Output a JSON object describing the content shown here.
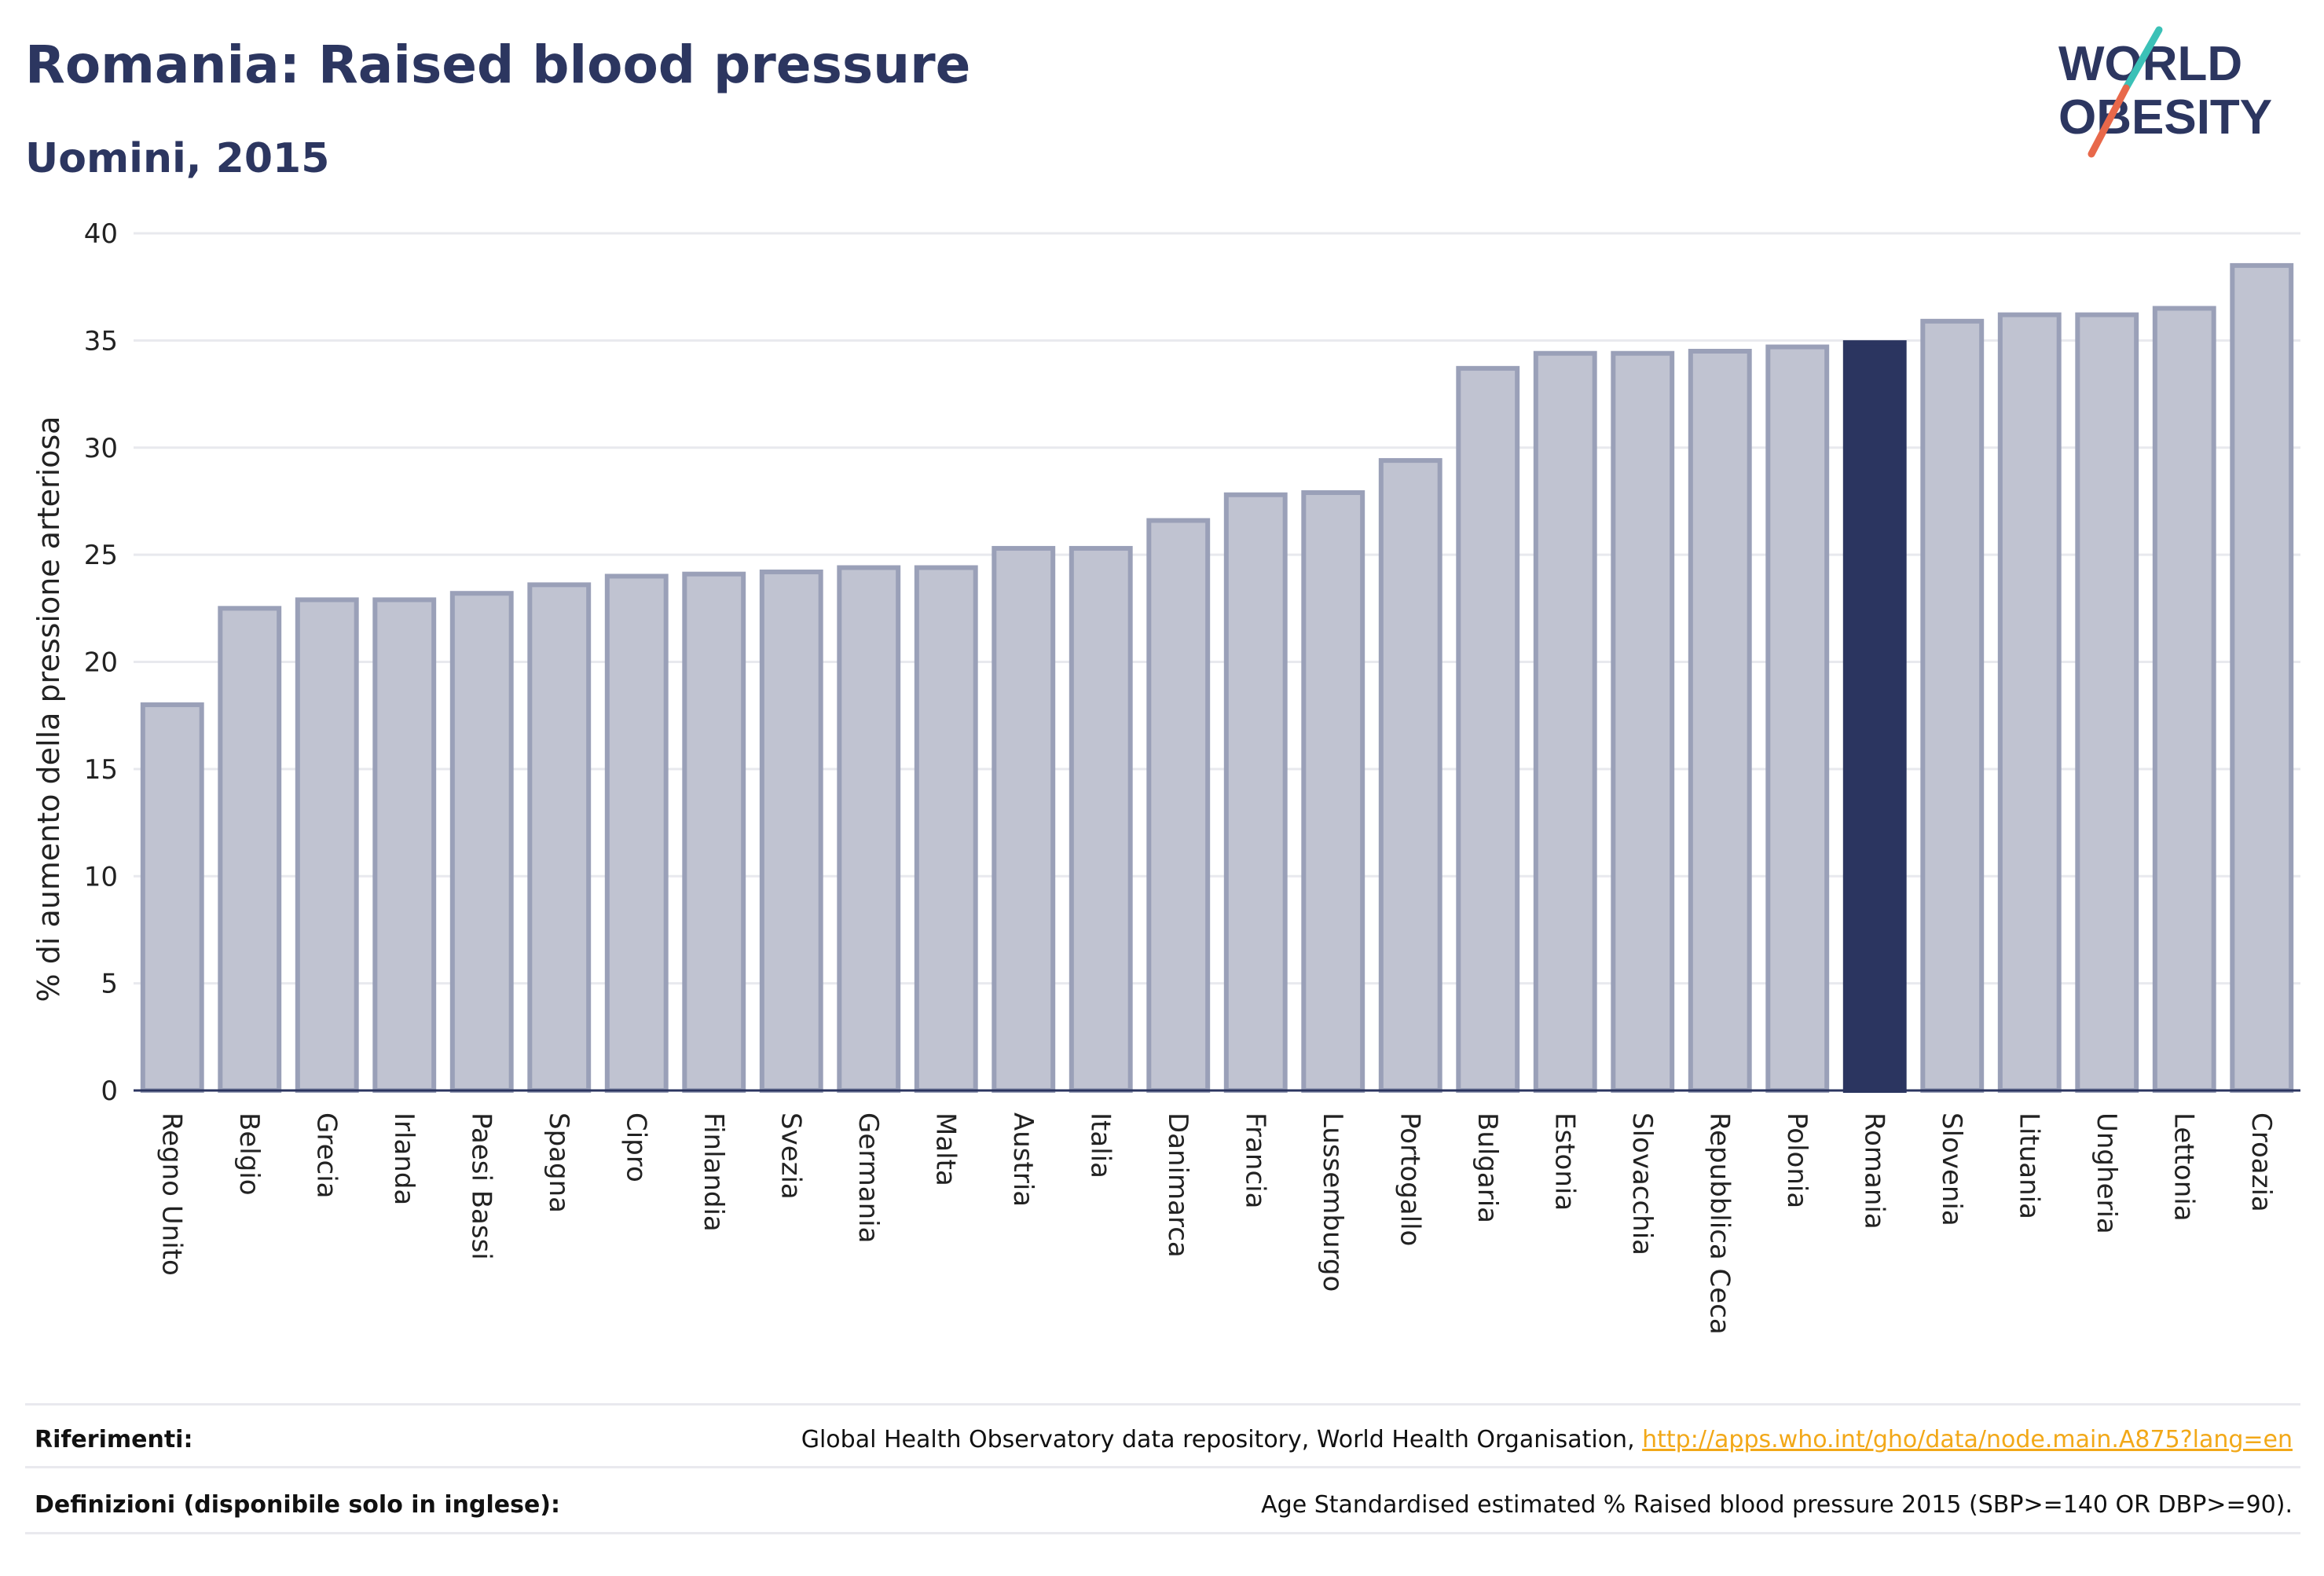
{
  "header": {
    "title": "Romania: Raised blood pressure",
    "subtitle": "Uomini, 2015"
  },
  "logo": {
    "line1": "WORLD",
    "line2": "OBESITY",
    "slash_colors": [
      "#3bc1b7",
      "#e8684a"
    ],
    "text_color": "#2c3660"
  },
  "chart_data": {
    "type": "bar",
    "ylabel": "% di aumento della pressione arteriosa",
    "xlabel": "",
    "ylim": [
      0,
      40
    ],
    "yticks": [
      0,
      5,
      10,
      15,
      20,
      25,
      30,
      35,
      40
    ],
    "grid": true,
    "categories": [
      "Regno Unito",
      "Belgio",
      "Grecia",
      "Irlanda",
      "Paesi Bassi",
      "Spagna",
      "Cipro",
      "Finlandia",
      "Svezia",
      "Germania",
      "Malta",
      "Austria",
      "Italia",
      "Danimarca",
      "Francia",
      "Lussemburgo",
      "Portogallo",
      "Bulgaria",
      "Estonia",
      "Slovacchia",
      "Repubblica Ceca",
      "Polonia",
      "Romania",
      "Slovenia",
      "Lituania",
      "Ungheria",
      "Lettonia",
      "Croazia"
    ],
    "values": [
      18.0,
      22.5,
      22.9,
      22.9,
      23.2,
      23.6,
      24.0,
      24.1,
      24.2,
      24.4,
      24.4,
      25.3,
      25.3,
      26.6,
      27.8,
      27.9,
      29.4,
      33.7,
      34.4,
      34.4,
      34.5,
      34.7,
      34.9,
      35.9,
      36.2,
      36.2,
      36.5,
      38.5
    ],
    "highlight": "Romania",
    "colors": {
      "bar_fill": "#c0c3d1",
      "bar_border": "#9aa0b8",
      "highlight_fill": "#2b3560",
      "grid": "#e8e9ee",
      "axis": "#2b3560"
    }
  },
  "footer": {
    "references_label": "Riferimenti:",
    "references_text": "Global Health Observatory data repository, World Health Organisation, ",
    "references_link": "http://apps.who.int/gho/data/node.main.A875?lang=en",
    "definitions_label": "Definizioni (disponibile solo in inglese):",
    "definitions_text": "Age Standardised estimated % Raised blood pressure 2015 (SBP>=140 OR DBP>=90)."
  }
}
